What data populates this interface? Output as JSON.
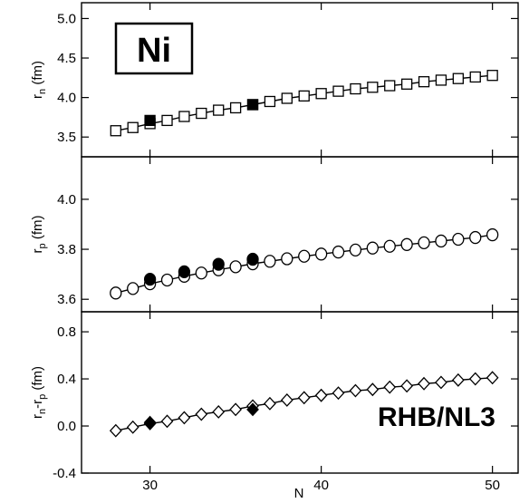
{
  "chart_data": [
    {
      "type": "scatter",
      "panel": "top",
      "ylabel": "r",
      "ylabel_sub": "n",
      "ylabel_unit": " (fm)",
      "ylim": [
        3.25,
        5.2
      ],
      "yticks": [
        3.5,
        4.0,
        4.5,
        5.0
      ],
      "ytick_labels": [
        "3.5",
        "4.0",
        "4.5",
        "5.0"
      ],
      "inset_label": "Ni",
      "marker": "square",
      "series": [
        {
          "name": "",
          "style": "open",
          "with_line": true,
          "x": [
            28,
            29,
            30,
            31,
            32,
            33,
            34,
            35,
            36,
            37,
            38,
            39,
            40,
            41,
            42,
            43,
            44,
            45,
            46,
            47,
            48,
            49,
            50
          ],
          "y": [
            3.58,
            3.62,
            3.67,
            3.71,
            3.76,
            3.8,
            3.84,
            3.87,
            3.91,
            3.95,
            3.99,
            4.02,
            4.05,
            4.08,
            4.11,
            4.13,
            4.15,
            4.17,
            4.2,
            4.22,
            4.24,
            4.26,
            4.28
          ]
        },
        {
          "name": "",
          "style": "filled",
          "with_line": false,
          "x": [
            30,
            36
          ],
          "y": [
            3.71,
            3.91
          ]
        }
      ]
    },
    {
      "type": "scatter",
      "panel": "middle",
      "ylabel": "r",
      "ylabel_sub": "p",
      "ylabel_unit": " (fm)",
      "ylim": [
        3.55,
        4.17
      ],
      "yticks": [
        3.6,
        3.8,
        4.0
      ],
      "ytick_labels": [
        "3.6",
        "3.8",
        "4.0"
      ],
      "marker": "circle",
      "series": [
        {
          "name": "",
          "style": "open",
          "with_line": true,
          "x": [
            28,
            29,
            30,
            31,
            32,
            33,
            34,
            35,
            36,
            37,
            38,
            39,
            40,
            41,
            42,
            43,
            44,
            45,
            46,
            47,
            48,
            49,
            50
          ],
          "y": [
            3.625,
            3.643,
            3.662,
            3.677,
            3.692,
            3.705,
            3.718,
            3.73,
            3.742,
            3.752,
            3.762,
            3.772,
            3.781,
            3.789,
            3.797,
            3.805,
            3.812,
            3.819,
            3.826,
            3.833,
            3.84,
            3.847,
            3.858
          ]
        },
        {
          "name": "",
          "style": "filled",
          "with_line": false,
          "x": [
            30,
            32,
            34,
            36
          ],
          "y": [
            3.68,
            3.71,
            3.74,
            3.76
          ]
        }
      ]
    },
    {
      "type": "scatter",
      "panel": "bottom",
      "ylabel": "r",
      "ylabel_sub": "n",
      "ylabel_mid": "-r",
      "ylabel_sub2": "p",
      "ylabel_unit": " (fm)",
      "ylim": [
        -0.4,
        0.97
      ],
      "yticks": [
        -0.4,
        0.0,
        0.4,
        0.8
      ],
      "ytick_labels": [
        "-0.4",
        "0.0",
        "0.4",
        "0.8"
      ],
      "xlim": [
        26,
        51.5
      ],
      "xticks": [
        30,
        40,
        50
      ],
      "xtick_labels": [
        "30",
        "40",
        "50"
      ],
      "xlabel": "N",
      "inset_label": "RHB/NL3",
      "marker": "diamond",
      "series": [
        {
          "name": "",
          "style": "open",
          "with_line": true,
          "x": [
            28,
            29,
            30,
            31,
            32,
            33,
            34,
            35,
            36,
            37,
            38,
            39,
            40,
            41,
            42,
            43,
            44,
            45,
            46,
            47,
            48,
            49,
            50
          ],
          "y": [
            -0.04,
            -0.01,
            0.02,
            0.04,
            0.07,
            0.1,
            0.12,
            0.14,
            0.17,
            0.19,
            0.22,
            0.24,
            0.26,
            0.28,
            0.3,
            0.31,
            0.33,
            0.34,
            0.36,
            0.37,
            0.39,
            0.4,
            0.41
          ]
        },
        {
          "name": "",
          "style": "filled",
          "with_line": false,
          "x": [
            30,
            36
          ],
          "y": [
            0.03,
            0.14
          ]
        }
      ]
    }
  ]
}
